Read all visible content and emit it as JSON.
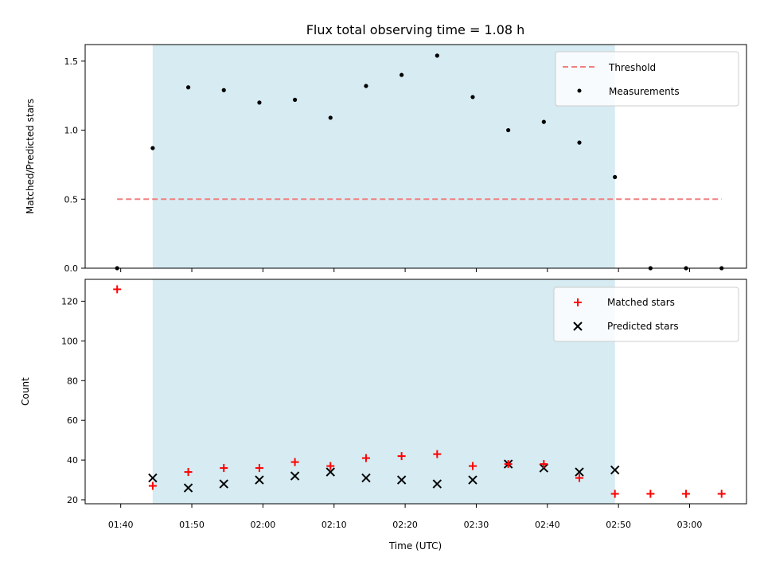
{
  "figure": {
    "title": "Flux total observing time = 1.08 h",
    "xlabel": "Time (UTC)",
    "x_tick_labels": [
      "01:40",
      "01:50",
      "02:00",
      "02:10",
      "02:20",
      "02:30",
      "02:40",
      "02:50",
      "03:00"
    ]
  },
  "chart_data": [
    {
      "type": "scatter",
      "panel": "top",
      "ylabel": "Matched/Predicted stars",
      "xlim": [
        "01:35",
        "03:08"
      ],
      "ylim": [
        0,
        1.62
      ],
      "y_ticks": [
        "0.0",
        "0.5",
        "1.0",
        "1.5"
      ],
      "shaded_span": [
        "01:44.5",
        "02:49.5"
      ],
      "shade_color": "#add8e6",
      "threshold": {
        "name": "Threshold",
        "value": 0.5,
        "x_range": [
          "01:39.5",
          "03:04.5"
        ],
        "color": "#f08080"
      },
      "series": [
        {
          "name": "Measurements",
          "color": "#000000",
          "x": [
            "01:39.5",
            "01:44.5",
            "01:49.5",
            "01:54.5",
            "01:59.5",
            "02:04.5",
            "02:09.5",
            "02:14.5",
            "02:19.5",
            "02:24.5",
            "02:29.5",
            "02:34.5",
            "02:39.5",
            "02:44.5",
            "02:49.5",
            "02:54.5",
            "02:59.5",
            "03:04.5"
          ],
          "y": [
            0,
            0.87,
            1.31,
            1.29,
            1.2,
            1.22,
            1.09,
            1.32,
            1.4,
            1.54,
            1.24,
            1.0,
            1.06,
            0.91,
            0.66,
            0,
            0,
            0
          ]
        }
      ],
      "legend": {
        "position": "top-right",
        "entries": [
          "Threshold",
          "Measurements"
        ]
      },
      "grid": false
    },
    {
      "type": "scatter",
      "panel": "bottom",
      "ylabel": "Count",
      "xlabel": "Time (UTC)",
      "xlim": [
        "01:35",
        "03:08"
      ],
      "ylim": [
        18,
        131
      ],
      "y_ticks": [
        "20",
        "40",
        "60",
        "80",
        "100",
        "120"
      ],
      "shaded_span": [
        "01:44.5",
        "02:49.5"
      ],
      "series": [
        {
          "name": "Matched stars",
          "marker": "+",
          "color": "#ff0000",
          "x": [
            "01:39.5",
            "01:44.5",
            "01:49.5",
            "01:54.5",
            "01:59.5",
            "02:04.5",
            "02:09.5",
            "02:14.5",
            "02:19.5",
            "02:24.5",
            "02:29.5",
            "02:34.5",
            "02:39.5",
            "02:44.5",
            "02:49.5",
            "02:54.5",
            "02:59.5",
            "03:04.5"
          ],
          "y": [
            126,
            27,
            34,
            36,
            36,
            39,
            37,
            41,
            42,
            43,
            37,
            38,
            38,
            31,
            23,
            23,
            23,
            23
          ]
        },
        {
          "name": "Predicted stars",
          "marker": "x",
          "color": "#000000",
          "x": [
            "01:44.5",
            "01:49.5",
            "01:54.5",
            "01:59.5",
            "02:04.5",
            "02:09.5",
            "02:14.5",
            "02:19.5",
            "02:24.5",
            "02:29.5",
            "02:34.5",
            "02:39.5",
            "02:44.5",
            "02:49.5"
          ],
          "y": [
            31,
            26,
            28,
            30,
            32,
            34,
            31,
            30,
            28,
            30,
            38,
            36,
            34,
            35
          ]
        }
      ],
      "legend": {
        "position": "top-right",
        "entries": [
          "Matched stars",
          "Predicted stars"
        ]
      },
      "grid": false
    }
  ]
}
